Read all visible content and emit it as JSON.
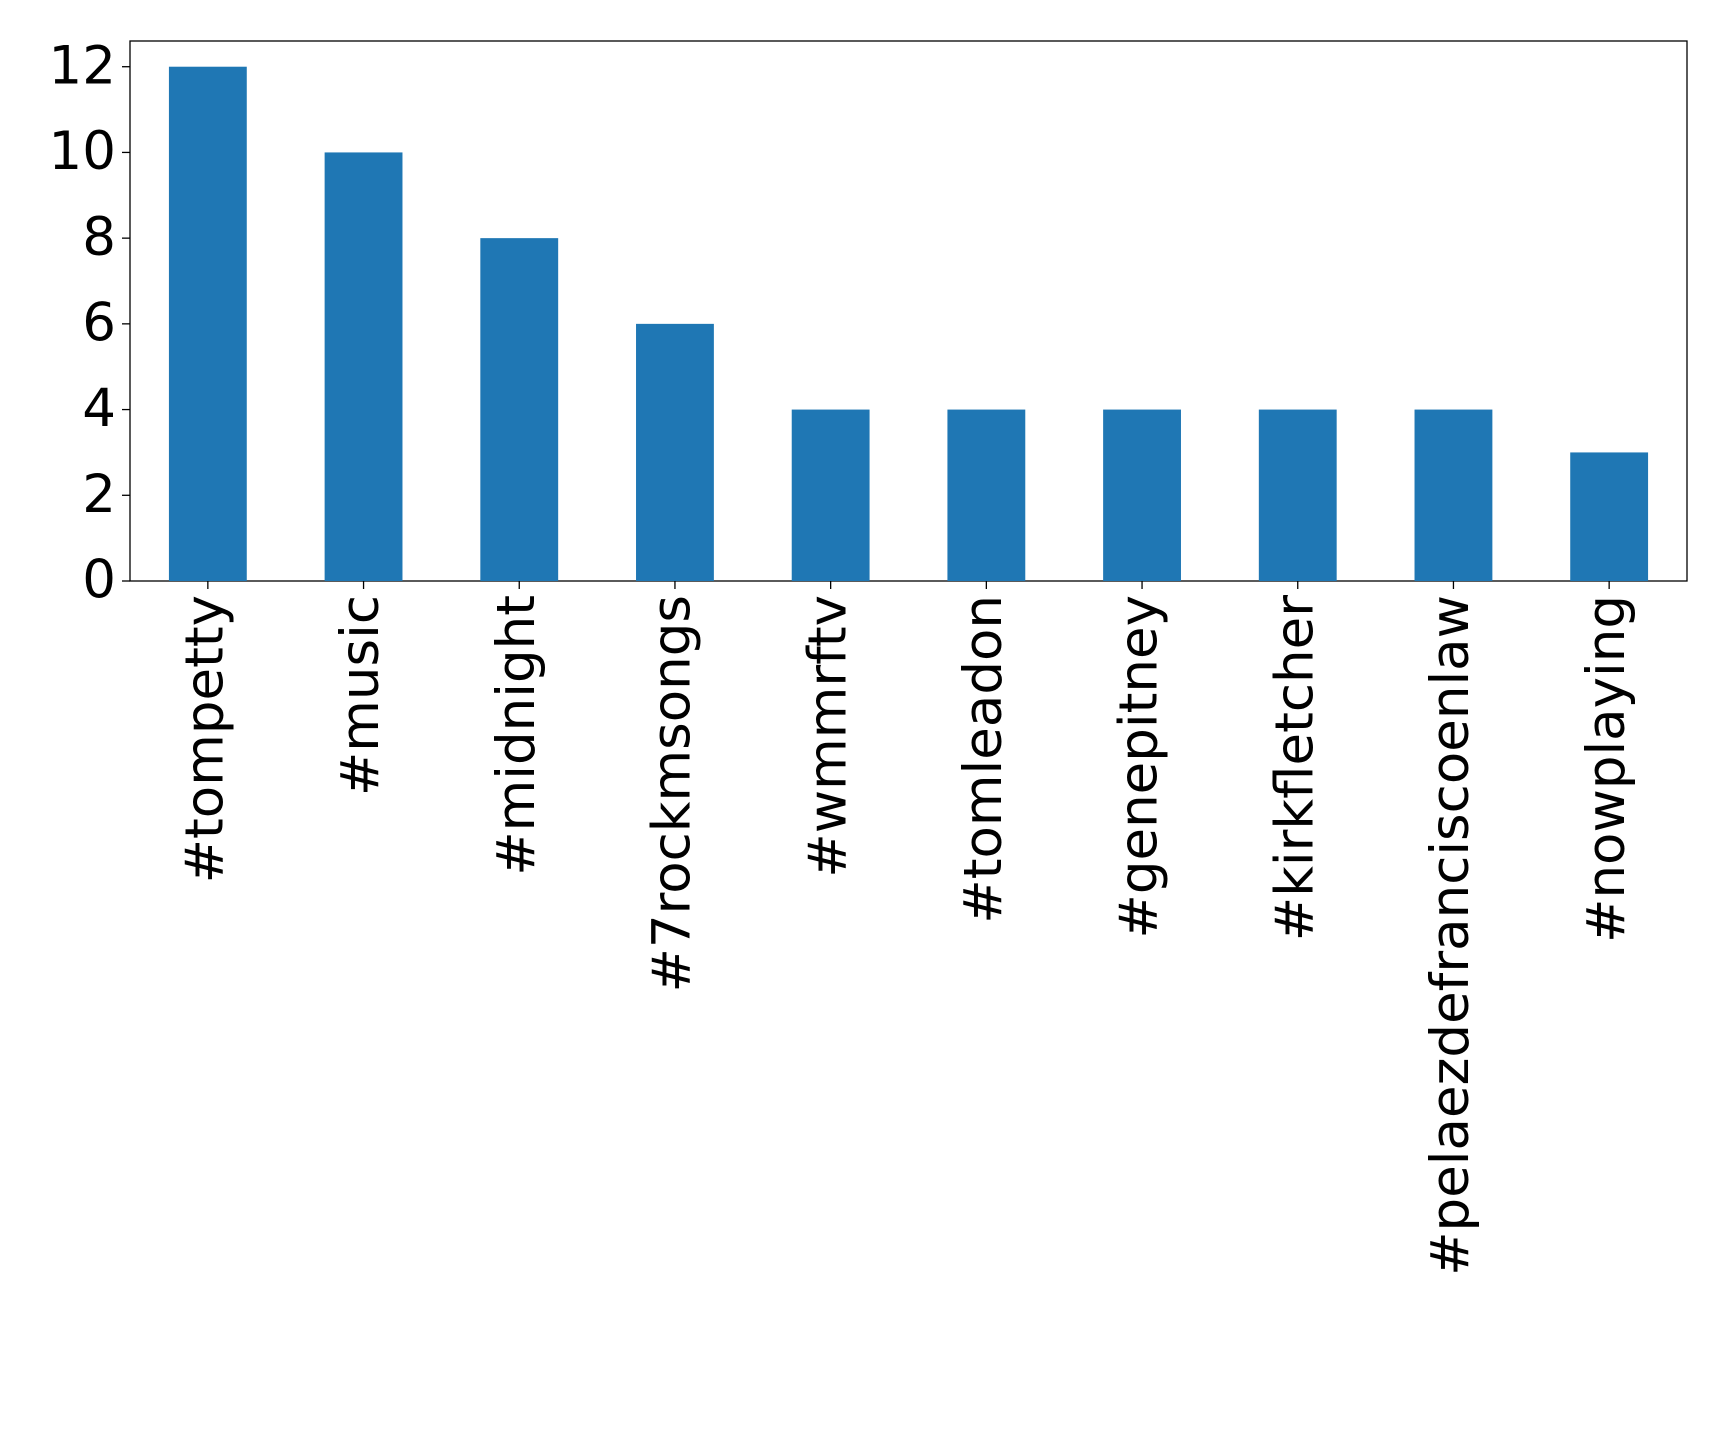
{
  "chart_data": {
    "type": "bar",
    "categories": [
      "#tompetty",
      "#music",
      "#midnight",
      "#7rockmsongs",
      "#wmmrftv",
      "#tomleadon",
      "#genepitney",
      "#kirkfletcher",
      "#pelaezdefranciscoenlaw",
      "#nowplaying"
    ],
    "values": [
      12,
      10,
      8,
      6,
      4,
      4,
      4,
      4,
      4,
      3
    ],
    "color": "#1f77b4",
    "ylim": [
      0,
      12.6
    ],
    "yticks": [
      0,
      2,
      4,
      6,
      8,
      10,
      12
    ],
    "grid": false
  }
}
